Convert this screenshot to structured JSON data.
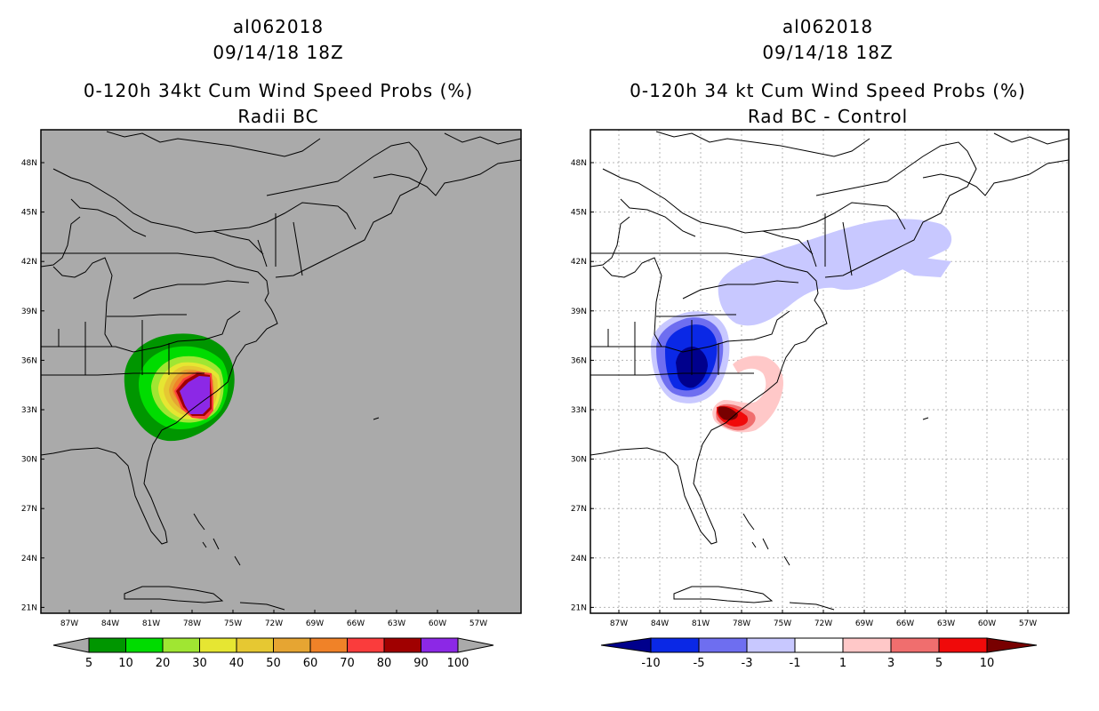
{
  "left": {
    "storm_id": "al062018",
    "datetime": "09/14/18 18Z",
    "title": "0-120h 34kt Cum Wind Speed Probs (%)",
    "subtitle": "Radii BC",
    "colorbar": {
      "labels": [
        "5",
        "10",
        "20",
        "30",
        "40",
        "50",
        "60",
        "70",
        "80",
        "90",
        "100"
      ],
      "colors": [
        "#009600",
        "#00dc00",
        "#a0e632",
        "#e6e632",
        "#e6c832",
        "#e6a532",
        "#f08228",
        "#fa3c3c",
        "#a00000",
        "#8c28e6"
      ]
    }
  },
  "right": {
    "storm_id": "al062018",
    "datetime": "09/14/18 18Z",
    "title": "0-120h 34 kt Cum Wind Speed Probs (%)",
    "subtitle": "Rad BC - Control",
    "colorbar": {
      "labels": [
        "-10",
        "-5",
        "-3",
        "-1",
        "1",
        "3",
        "5",
        "10"
      ],
      "colors": [
        "#00008c",
        "#0a28e6",
        "#6e6ef0",
        "#c8c8ff",
        "#ffffff",
        "#ffc8c8",
        "#f06e6e",
        "#f00a0a",
        "#780000"
      ]
    }
  },
  "axes": {
    "lat_labels": [
      "48N",
      "45N",
      "42N",
      "39N",
      "36N",
      "33N",
      "30N",
      "27N",
      "24N",
      "21N"
    ],
    "lon_labels": [
      "87W",
      "84W",
      "81W",
      "78W",
      "75W",
      "72W",
      "69W",
      "66W",
      "63W",
      "60W",
      "57W"
    ]
  },
  "colors": {
    "land_bg": "#aaaaaa",
    "diff_bg": "#ffffff",
    "grid": "#b4b4b4"
  }
}
